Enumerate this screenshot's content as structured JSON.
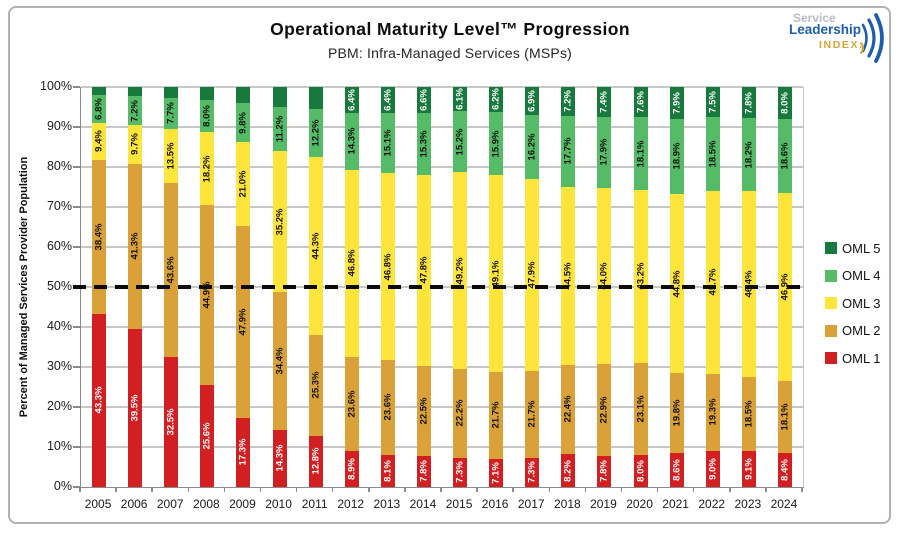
{
  "title": "Operational Maturity Level™ Progression",
  "subtitle": "PBM: Infra-Managed Services (MSPs)",
  "logo": {
    "line1": "Service",
    "line2": "Leadership",
    "line3": "INDEX."
  },
  "y_axis_label": "Percent of Managed Services Provider Population",
  "chart_data": {
    "type": "bar",
    "stacked": true,
    "title": "Operational Maturity Level™ Progression",
    "subtitle": "PBM: Infra-Managed Services (MSPs)",
    "ylabel": "Percent of Managed Services Provider Population",
    "ylim": [
      0,
      100
    ],
    "grid": true,
    "legend_position": "right",
    "y_ticks": [
      "0%",
      "10%",
      "20%",
      "30%",
      "40%",
      "50%",
      "60%",
      "70%",
      "80%",
      "90%",
      "100%"
    ],
    "categories": [
      "2005",
      "2006",
      "2007",
      "2008",
      "2009",
      "2010",
      "2011",
      "2012",
      "2013",
      "2014",
      "2015",
      "2016",
      "2017",
      "2018",
      "2019",
      "2020",
      "2021",
      "2022",
      "2023",
      "2024"
    ],
    "reference_line": {
      "value": 50,
      "style": "dashed",
      "color": "#0b0b0b"
    },
    "series": [
      {
        "name": "OML 1",
        "color": "#D21F21",
        "label_color": "#ffffff",
        "values": [
          43.3,
          39.5,
          32.5,
          25.6,
          17.3,
          14.3,
          12.8,
          8.9,
          8.1,
          7.8,
          7.3,
          7.1,
          7.3,
          8.2,
          7.8,
          8.0,
          8.6,
          9.0,
          9.1,
          8.4
        ],
        "labels": [
          "43.3%",
          "39.5%",
          "32.5%",
          "25.6%",
          "17.3%",
          "14.3%",
          "12.8%",
          "8.9%",
          "8.1%",
          "7.8%",
          "7.3%",
          "7.1%",
          "7.3%",
          "8.2%",
          "7.8%",
          "8.0%",
          "8.6%",
          "9.0%",
          "9.1%",
          "8.4%"
        ]
      },
      {
        "name": "OML 2",
        "color": "#D9A137",
        "label_color": "#111111",
        "values": [
          38.4,
          41.3,
          43.6,
          44.9,
          47.9,
          34.4,
          25.3,
          23.6,
          23.6,
          22.5,
          22.2,
          21.7,
          21.7,
          22.4,
          22.9,
          23.1,
          19.8,
          19.3,
          18.5,
          18.1
        ],
        "labels": [
          "38.4%",
          "41.3%",
          "43.6%",
          "44.9%",
          "47.9%",
          "34.4%",
          "25.3%",
          "23.6%",
          "23.6%",
          "22.5%",
          "22.2%",
          "21.7%",
          "21.7%",
          "22.4%",
          "22.9%",
          "23.1%",
          "19.8%",
          "19.3%",
          "18.5%",
          "18.1%"
        ]
      },
      {
        "name": "OML 3",
        "color": "#FFE43C",
        "label_color": "#111111",
        "values": [
          9.4,
          9.7,
          13.5,
          18.2,
          21.0,
          35.2,
          44.3,
          46.8,
          46.8,
          47.8,
          49.2,
          49.1,
          47.9,
          44.5,
          44.0,
          43.2,
          44.8,
          45.7,
          46.4,
          46.9
        ],
        "labels": [
          "9.4%",
          "9.7%",
          "13.5%",
          "18.2%",
          "21.0%",
          "35.2%",
          "44.3%",
          "46.8%",
          "46.8%",
          "47.8%",
          "49.2%",
          "49.1%",
          "47.9%",
          "44.5%",
          "44.0%",
          "43.2%",
          "44.8%",
          "45.7%",
          "46.4%",
          "46.9%"
        ]
      },
      {
        "name": "OML 4",
        "color": "#55BB66",
        "label_color": "#111111",
        "values": [
          6.8,
          7.2,
          7.7,
          8.0,
          9.8,
          11.2,
          12.2,
          14.3,
          15.1,
          15.3,
          15.2,
          15.9,
          16.2,
          17.7,
          17.9,
          18.1,
          18.9,
          18.5,
          18.2,
          18.6
        ],
        "labels": [
          "6.8%",
          "7.2%",
          "7.7%",
          "8.0%",
          "9.8%",
          "11.2%",
          "12.2%",
          "14.3%",
          "15.1%",
          "15.3%",
          "15.2%",
          "15.9%",
          "16.2%",
          "17.7%",
          "17.9%",
          "18.1%",
          "18.9%",
          "18.5%",
          "18.2%",
          "18.6%"
        ]
      },
      {
        "name": "OML 5",
        "color": "#17793B",
        "label_color": "#ffffff",
        "values": [
          2.1,
          2.3,
          2.7,
          3.3,
          4.0,
          4.9,
          5.4,
          6.4,
          6.4,
          6.6,
          6.1,
          6.2,
          6.9,
          7.2,
          7.4,
          7.6,
          7.9,
          7.5,
          7.8,
          8.0
        ],
        "labels": [
          null,
          null,
          null,
          null,
          null,
          null,
          null,
          "6.4%",
          "6.4%",
          "6.6%",
          "6.1%",
          "6.2%",
          "6.9%",
          "7.2%",
          "7.4%",
          "7.6%",
          "7.9%",
          "7.5%",
          "7.8%",
          "8.0%"
        ]
      }
    ]
  }
}
